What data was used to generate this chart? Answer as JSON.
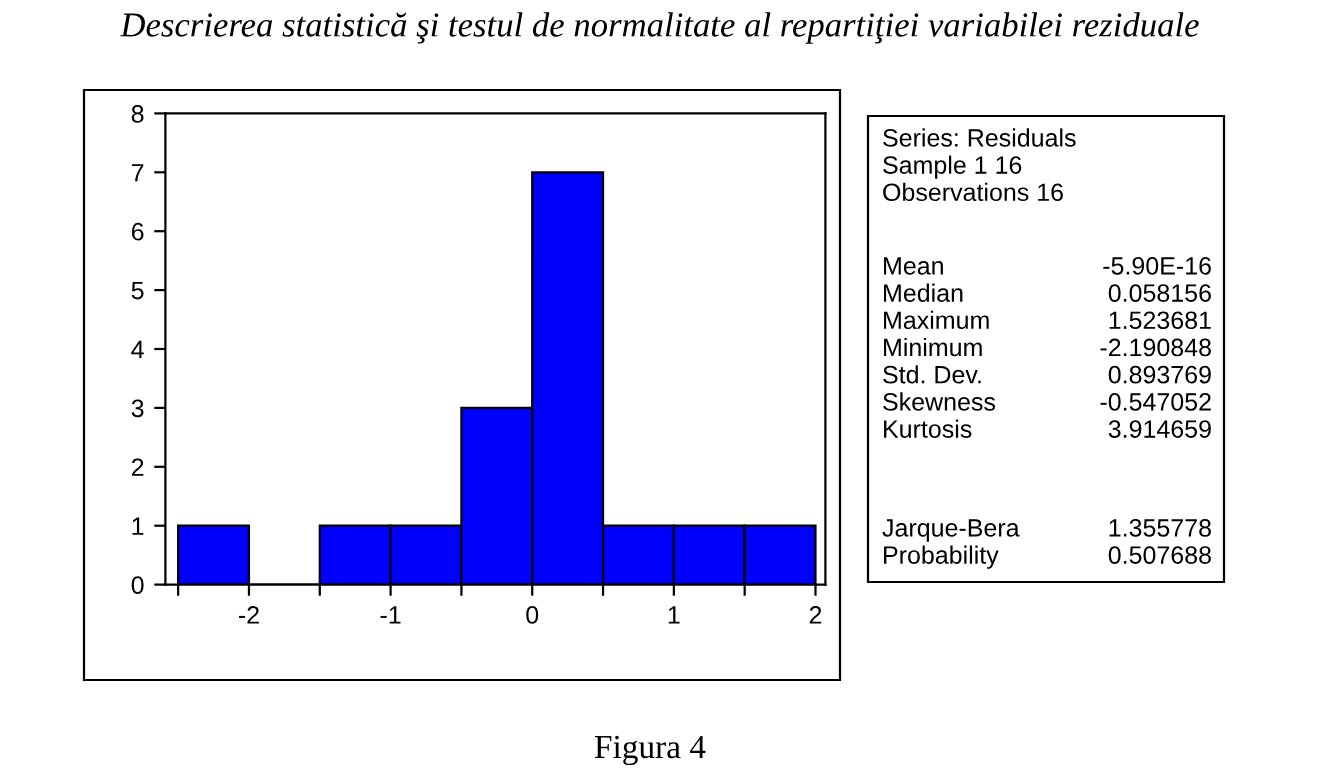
{
  "chart_data": {
    "type": "histogram",
    "title": "Descrierea statistică şi testul de normalitate al repartiţiei variabilei reziduale",
    "bins": [
      -2.5,
      -2,
      -1.5,
      -1,
      -0.5,
      0,
      0.5,
      1,
      1.5,
      2
    ],
    "values": [
      1,
      0,
      1,
      1,
      3,
      7,
      1,
      1,
      1
    ],
    "color": "#0000ff",
    "xlim": [
      -2.59,
      2.07
    ],
    "xticks": [
      {
        "value": -2.5,
        "label": null
      },
      -2,
      {
        "value": -1.5,
        "label": null
      },
      -1,
      {
        "value": -0.5,
        "label": null
      },
      0,
      {
        "value": 0.5,
        "label": null
      },
      1,
      {
        "value": 1.5,
        "label": null
      },
      2
    ],
    "ylim": [
      0,
      8
    ],
    "yticks": [
      0,
      1,
      2,
      3,
      4,
      5,
      6,
      7,
      8
    ],
    "grid": false,
    "annotations": [
      "Series: Residuals",
      "Sample 1 16",
      "Observations 16",
      "Mean",
      "-5.90E-16",
      "Median",
      "0.058156",
      "Maximum",
      "1.523681",
      "Minimum",
      "-2.190848",
      "Std. Dev.",
      "0.893769",
      "Skewness",
      "-0.547052",
      "Kurtosis",
      "3.914659",
      "Jarque-Bera",
      "1.355778",
      "Probability",
      "0.507688",
      "Figura 4"
    ]
  }
}
